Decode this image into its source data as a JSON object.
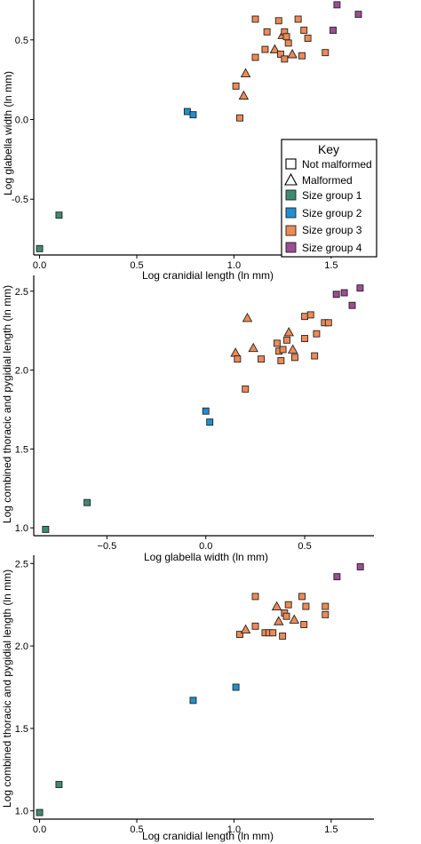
{
  "legend": {
    "title": "Key",
    "position": "inside-lower-right-of-first-panel",
    "entries": [
      {
        "label": "Not malformed",
        "symbol": "square-outline"
      },
      {
        "label": "Malformed",
        "symbol": "triangle-outline"
      },
      {
        "label": "Size group 1",
        "symbol": "square",
        "color": "#3f8a74"
      },
      {
        "label": "Size group 2",
        "symbol": "square",
        "color": "#1f8fd0"
      },
      {
        "label": "Size group 3",
        "symbol": "square",
        "color": "#ef8a55"
      },
      {
        "label": "Size group 4",
        "symbol": "square",
        "color": "#9c4d93"
      }
    ]
  },
  "colors": {
    "g1": "#3f8a74",
    "g2": "#1f8fd0",
    "g3": "#ef8a55",
    "g4": "#9c4d93"
  },
  "chart_data": [
    {
      "type": "scatter",
      "xlabel": "Log cranidial length (ln mm)",
      "ylabel": "Log glabella width (ln mm)",
      "xlim": [
        -0.03,
        1.72
      ],
      "ylim": [
        -0.85,
        0.75
      ],
      "xticks": [
        0.0,
        0.5,
        1.0,
        1.5
      ],
      "yticks": [
        0.5,
        0.0,
        -0.5
      ],
      "xtick_labels": [
        "0.0",
        "0.5",
        "1.0",
        "1.5"
      ],
      "ytick_labels": [
        "0.5",
        "0.0",
        "-0.5"
      ],
      "grid": false,
      "points": [
        {
          "x": 0.0,
          "y": -0.81,
          "group": 1,
          "shape": "square"
        },
        {
          "x": 0.1,
          "y": -0.6,
          "group": 1,
          "shape": "square"
        },
        {
          "x": 0.76,
          "y": 0.05,
          "group": 2,
          "shape": "square"
        },
        {
          "x": 0.79,
          "y": 0.03,
          "group": 2,
          "shape": "square"
        },
        {
          "x": 1.01,
          "y": 0.21,
          "group": 3,
          "shape": "square"
        },
        {
          "x": 1.03,
          "y": 0.01,
          "group": 3,
          "shape": "square"
        },
        {
          "x": 1.05,
          "y": 0.15,
          "group": 3,
          "shape": "triangle"
        },
        {
          "x": 1.06,
          "y": 0.29,
          "group": 3,
          "shape": "triangle"
        },
        {
          "x": 1.11,
          "y": 0.39,
          "group": 3,
          "shape": "square"
        },
        {
          "x": 1.11,
          "y": 0.63,
          "group": 3,
          "shape": "square"
        },
        {
          "x": 1.16,
          "y": 0.44,
          "group": 3,
          "shape": "square"
        },
        {
          "x": 1.17,
          "y": 0.55,
          "group": 3,
          "shape": "square"
        },
        {
          "x": 1.21,
          "y": 0.44,
          "group": 3,
          "shape": "triangle"
        },
        {
          "x": 1.23,
          "y": 0.62,
          "group": 3,
          "shape": "square"
        },
        {
          "x": 1.24,
          "y": 0.41,
          "group": 3,
          "shape": "square"
        },
        {
          "x": 1.25,
          "y": 0.53,
          "group": 3,
          "shape": "triangle"
        },
        {
          "x": 1.26,
          "y": 0.55,
          "group": 3,
          "shape": "square"
        },
        {
          "x": 1.26,
          "y": 0.38,
          "group": 3,
          "shape": "square"
        },
        {
          "x": 1.27,
          "y": 0.52,
          "group": 3,
          "shape": "square"
        },
        {
          "x": 1.28,
          "y": 0.48,
          "group": 3,
          "shape": "square"
        },
        {
          "x": 1.3,
          "y": 0.41,
          "group": 3,
          "shape": "triangle"
        },
        {
          "x": 1.33,
          "y": 0.63,
          "group": 3,
          "shape": "square"
        },
        {
          "x": 1.35,
          "y": 0.4,
          "group": 3,
          "shape": "square"
        },
        {
          "x": 1.36,
          "y": 0.56,
          "group": 3,
          "shape": "square"
        },
        {
          "x": 1.38,
          "y": 0.51,
          "group": 3,
          "shape": "square"
        },
        {
          "x": 1.47,
          "y": 0.42,
          "group": 3,
          "shape": "square"
        },
        {
          "x": 1.51,
          "y": 0.56,
          "group": 4,
          "shape": "square"
        },
        {
          "x": 1.53,
          "y": 0.72,
          "group": 4,
          "shape": "square"
        },
        {
          "x": 1.64,
          "y": 0.66,
          "group": 4,
          "shape": "square"
        }
      ]
    },
    {
      "type": "scatter",
      "xlabel": "Log glabella width (ln mm)",
      "ylabel": "Log combined thoracic and pygidial length (ln mm)",
      "xlim": [
        -0.87,
        0.85
      ],
      "ylim": [
        0.95,
        2.6
      ],
      "xticks": [
        -0.5,
        0.0,
        0.5
      ],
      "yticks": [
        2.5,
        2.0,
        1.5,
        1.0
      ],
      "xtick_labels": [
        "−0.5",
        "0.0",
        "0.5"
      ],
      "ytick_labels": [
        "2.5",
        "2.0",
        "1.5",
        "1.0"
      ],
      "grid": false,
      "points": [
        {
          "x": -0.81,
          "y": 0.99,
          "group": 1,
          "shape": "square"
        },
        {
          "x": -0.6,
          "y": 1.16,
          "group": 1,
          "shape": "square"
        },
        {
          "x": 0.0,
          "y": 1.74,
          "group": 2,
          "shape": "square"
        },
        {
          "x": 0.02,
          "y": 1.67,
          "group": 2,
          "shape": "square"
        },
        {
          "x": 0.15,
          "y": 2.11,
          "group": 3,
          "shape": "triangle"
        },
        {
          "x": 0.16,
          "y": 2.07,
          "group": 3,
          "shape": "square"
        },
        {
          "x": 0.2,
          "y": 1.88,
          "group": 3,
          "shape": "square"
        },
        {
          "x": 0.21,
          "y": 2.33,
          "group": 3,
          "shape": "triangle"
        },
        {
          "x": 0.24,
          "y": 2.14,
          "group": 3,
          "shape": "triangle"
        },
        {
          "x": 0.28,
          "y": 2.07,
          "group": 3,
          "shape": "square"
        },
        {
          "x": 0.36,
          "y": 2.17,
          "group": 3,
          "shape": "square"
        },
        {
          "x": 0.37,
          "y": 2.12,
          "group": 3,
          "shape": "square"
        },
        {
          "x": 0.38,
          "y": 2.06,
          "group": 3,
          "shape": "square"
        },
        {
          "x": 0.39,
          "y": 2.13,
          "group": 3,
          "shape": "square"
        },
        {
          "x": 0.41,
          "y": 2.19,
          "group": 3,
          "shape": "square"
        },
        {
          "x": 0.42,
          "y": 2.24,
          "group": 3,
          "shape": "triangle"
        },
        {
          "x": 0.44,
          "y": 2.13,
          "group": 3,
          "shape": "triangle"
        },
        {
          "x": 0.45,
          "y": 2.08,
          "group": 3,
          "shape": "square"
        },
        {
          "x": 0.5,
          "y": 2.2,
          "group": 3,
          "shape": "square"
        },
        {
          "x": 0.5,
          "y": 2.34,
          "group": 3,
          "shape": "square"
        },
        {
          "x": 0.53,
          "y": 2.35,
          "group": 3,
          "shape": "square"
        },
        {
          "x": 0.55,
          "y": 2.09,
          "group": 3,
          "shape": "square"
        },
        {
          "x": 0.56,
          "y": 2.23,
          "group": 3,
          "shape": "square"
        },
        {
          "x": 0.6,
          "y": 2.3,
          "group": 3,
          "shape": "square"
        },
        {
          "x": 0.62,
          "y": 2.3,
          "group": 3,
          "shape": "square"
        },
        {
          "x": 0.66,
          "y": 2.48,
          "group": 4,
          "shape": "square"
        },
        {
          "x": 0.7,
          "y": 2.49,
          "group": 4,
          "shape": "square"
        },
        {
          "x": 0.74,
          "y": 2.41,
          "group": 4,
          "shape": "square"
        },
        {
          "x": 0.78,
          "y": 2.52,
          "group": 4,
          "shape": "square"
        }
      ]
    },
    {
      "type": "scatter",
      "xlabel": "Log cranidial length (ln mm)",
      "ylabel": "Log combined thoracic and pygidial length (ln mm)",
      "xlim": [
        -0.03,
        1.72
      ],
      "ylim": [
        0.95,
        2.55
      ],
      "xticks": [
        0.0,
        0.5,
        1.0,
        1.5
      ],
      "yticks": [
        2.5,
        2.0,
        1.5,
        1.0
      ],
      "xtick_labels": [
        "0.0",
        "0.5",
        "1.0",
        "1.5"
      ],
      "ytick_labels": [
        "2.5",
        "2.0",
        "1.5",
        "1.0"
      ],
      "grid": false,
      "points": [
        {
          "x": 0.0,
          "y": 0.99,
          "group": 1,
          "shape": "square"
        },
        {
          "x": 0.1,
          "y": 1.16,
          "group": 1,
          "shape": "square"
        },
        {
          "x": 0.79,
          "y": 1.67,
          "group": 2,
          "shape": "square"
        },
        {
          "x": 1.01,
          "y": 1.75,
          "group": 2,
          "shape": "square"
        },
        {
          "x": 1.03,
          "y": 2.07,
          "group": 3,
          "shape": "square"
        },
        {
          "x": 1.06,
          "y": 2.1,
          "group": 3,
          "shape": "triangle"
        },
        {
          "x": 1.11,
          "y": 2.3,
          "group": 3,
          "shape": "square"
        },
        {
          "x": 1.11,
          "y": 2.12,
          "group": 3,
          "shape": "square"
        },
        {
          "x": 1.16,
          "y": 2.08,
          "group": 3,
          "shape": "square"
        },
        {
          "x": 1.18,
          "y": 2.08,
          "group": 3,
          "shape": "square"
        },
        {
          "x": 1.2,
          "y": 2.08,
          "group": 3,
          "shape": "square"
        },
        {
          "x": 1.22,
          "y": 2.24,
          "group": 3,
          "shape": "triangle"
        },
        {
          "x": 1.23,
          "y": 2.15,
          "group": 3,
          "shape": "triangle"
        },
        {
          "x": 1.25,
          "y": 2.06,
          "group": 3,
          "shape": "square"
        },
        {
          "x": 1.26,
          "y": 2.2,
          "group": 3,
          "shape": "square"
        },
        {
          "x": 1.27,
          "y": 2.18,
          "group": 3,
          "shape": "square"
        },
        {
          "x": 1.28,
          "y": 2.25,
          "group": 3,
          "shape": "square"
        },
        {
          "x": 1.31,
          "y": 2.16,
          "group": 3,
          "shape": "triangle"
        },
        {
          "x": 1.35,
          "y": 2.3,
          "group": 3,
          "shape": "square"
        },
        {
          "x": 1.36,
          "y": 2.13,
          "group": 3,
          "shape": "square"
        },
        {
          "x": 1.37,
          "y": 2.24,
          "group": 3,
          "shape": "square"
        },
        {
          "x": 1.47,
          "y": 2.24,
          "group": 3,
          "shape": "square"
        },
        {
          "x": 1.47,
          "y": 2.19,
          "group": 3,
          "shape": "square"
        },
        {
          "x": 1.53,
          "y": 2.42,
          "group": 4,
          "shape": "square"
        },
        {
          "x": 1.65,
          "y": 2.48,
          "group": 4,
          "shape": "square"
        }
      ]
    }
  ]
}
